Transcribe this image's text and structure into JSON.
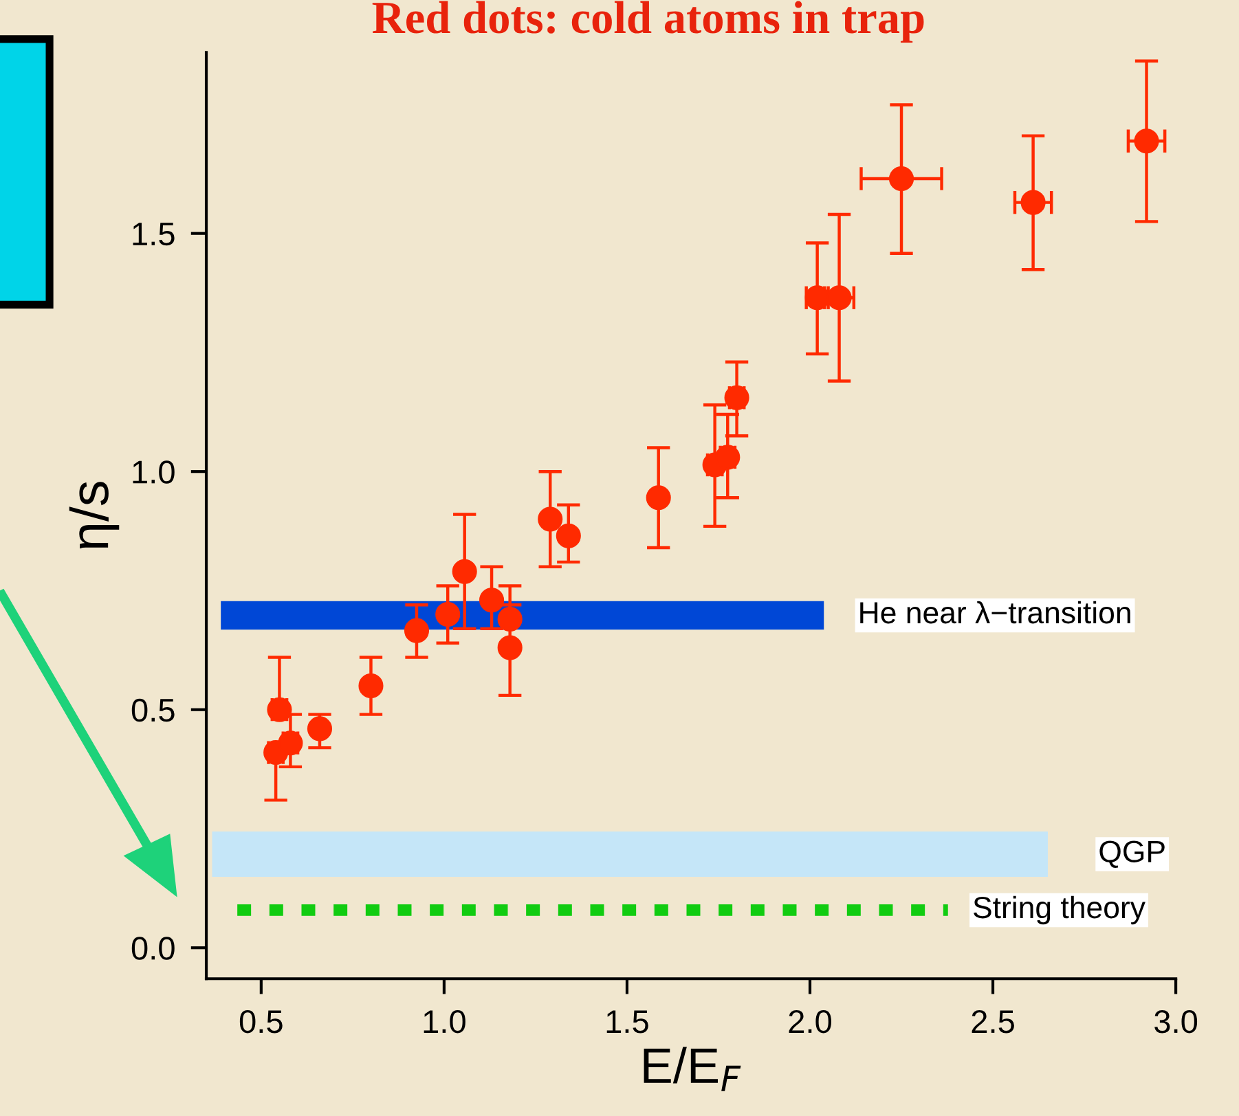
{
  "chart_data": {
    "type": "scatter",
    "title": "Red dots: cold atoms in trap",
    "xlabel": "E/E$_{F}$",
    "ylabel": "η/s",
    "xlim": [
      0.35,
      3.0
    ],
    "ylim": [
      -0.065,
      1.88
    ],
    "xticks": [
      0.5,
      {
        "value": 1,
        "label": "1.0"
      },
      1.5,
      {
        "value": 2,
        "label": "2.0"
      },
      2.5,
      {
        "value": 3,
        "label": "3.0"
      }
    ],
    "yticks": [
      {
        "value": 0,
        "label": "0.0"
      },
      0.5,
      {
        "value": 1,
        "label": "1.0"
      },
      1.5
    ],
    "grid": false,
    "legend": false,
    "marker": "circle",
    "series": [
      {
        "color": "#ff2a00",
        "x": [
          0.54,
          0.55,
          0.58,
          0.66,
          0.8,
          0.925,
          1.01,
          1.056,
          1.13,
          1.18,
          1.18,
          1.29,
          1.34,
          1.586,
          1.74,
          1.775,
          1.8,
          2.02,
          2.08,
          2.25,
          2.61,
          2.92
        ],
        "values": [
          0.41,
          0.5,
          0.43,
          0.46,
          0.55,
          0.666,
          0.7,
          0.79,
          0.73,
          0.69,
          0.63,
          0.9,
          0.865,
          0.945,
          1.014,
          1.03,
          1.155,
          1.365,
          1.365,
          1.615,
          1.565,
          1.694
        ],
        "errors": [
          [
            0.31,
            0.41
          ],
          [
            0.5,
            0.61
          ],
          [
            0.38,
            0.49
          ],
          [
            0.42,
            0.49
          ],
          [
            0.49,
            0.61
          ],
          [
            0.61,
            0.72
          ],
          [
            0.64,
            0.76
          ],
          [
            0.67,
            0.91
          ],
          [
            0.67,
            0.8
          ],
          [
            0.69,
            0.76
          ],
          [
            0.53,
            0.72
          ],
          [
            0.8,
            1.0
          ],
          [
            0.81,
            0.93
          ],
          [
            0.84,
            1.05
          ],
          [
            0.885,
            1.14
          ],
          [
            0.945,
            1.12
          ],
          [
            1.075,
            1.23
          ],
          [
            1.247,
            1.48
          ],
          [
            1.19,
            1.54
          ],
          [
            1.458,
            1.77
          ],
          [
            1.424,
            1.705
          ],
          [
            1.525,
            1.862
          ]
        ],
        "xerrors": [
          0.02,
          0.02,
          0.02,
          null,
          null,
          null,
          null,
          null,
          null,
          null,
          null,
          null,
          null,
          null,
          0.02,
          0.02,
          0.02,
          0.03,
          0.04,
          [
            2.14,
            2.36
          ],
          [
            2.56,
            2.66
          ],
          [
            2.87,
            2.97
          ]
        ]
      }
    ],
    "bands": [
      {
        "axis": "y",
        "from": 0.668,
        "to": 0.728,
        "label": "He near λ−transition",
        "color": "#0047d6"
      },
      {
        "axis": "y",
        "from": 0.149,
        "to": 0.244,
        "label": "QGP",
        "color": "#c5e6f8"
      }
    ],
    "ref_lines": [
      {
        "axis": "y",
        "value": 0.079,
        "label": "String theory",
        "color": "#11cc11",
        "line_style": "dotted"
      }
    ]
  }
}
